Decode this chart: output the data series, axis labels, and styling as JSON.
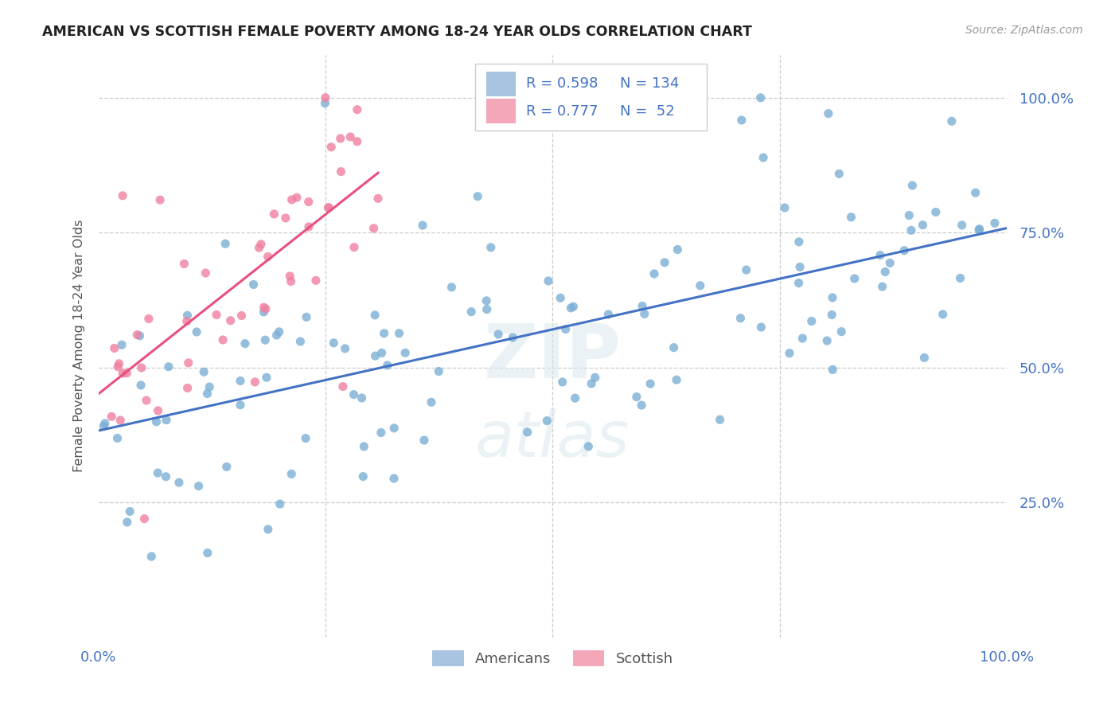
{
  "title": "AMERICAN VS SCOTTISH FEMALE POVERTY AMONG 18-24 YEAR OLDS CORRELATION CHART",
  "source": "Source: ZipAtlas.com",
  "ylabel": "Female Poverty Among 18-24 Year Olds",
  "american_color": "#7bafd4",
  "scottish_color": "#f080a0",
  "american_line_color": "#4472c4",
  "scottish_line_color": "#e85080",
  "american_R": 0.598,
  "american_N": 134,
  "scottish_R": 0.777,
  "scottish_N": 52,
  "background_color": "#ffffff",
  "title_color": "#222222",
  "axis_label_color": "#4472c4",
  "legend_fill_american": "#a8c4e0",
  "legend_fill_scottish": "#f4a7b9",
  "watermark_color": "#dce8f0",
  "grid_color": "#cccccc",
  "ytick_positions": [
    0.25,
    0.5,
    0.75,
    1.0
  ],
  "ytick_labels": [
    "25.0%",
    "50.0%",
    "75.0%",
    "100.0%"
  ],
  "xtick_edge_labels": [
    "0.0%",
    "100.0%"
  ],
  "xtick_edge_positions": [
    0.0,
    1.0
  ],
  "xlim": [
    0.0,
    1.0
  ],
  "ylim": [
    0.0,
    1.08
  ]
}
